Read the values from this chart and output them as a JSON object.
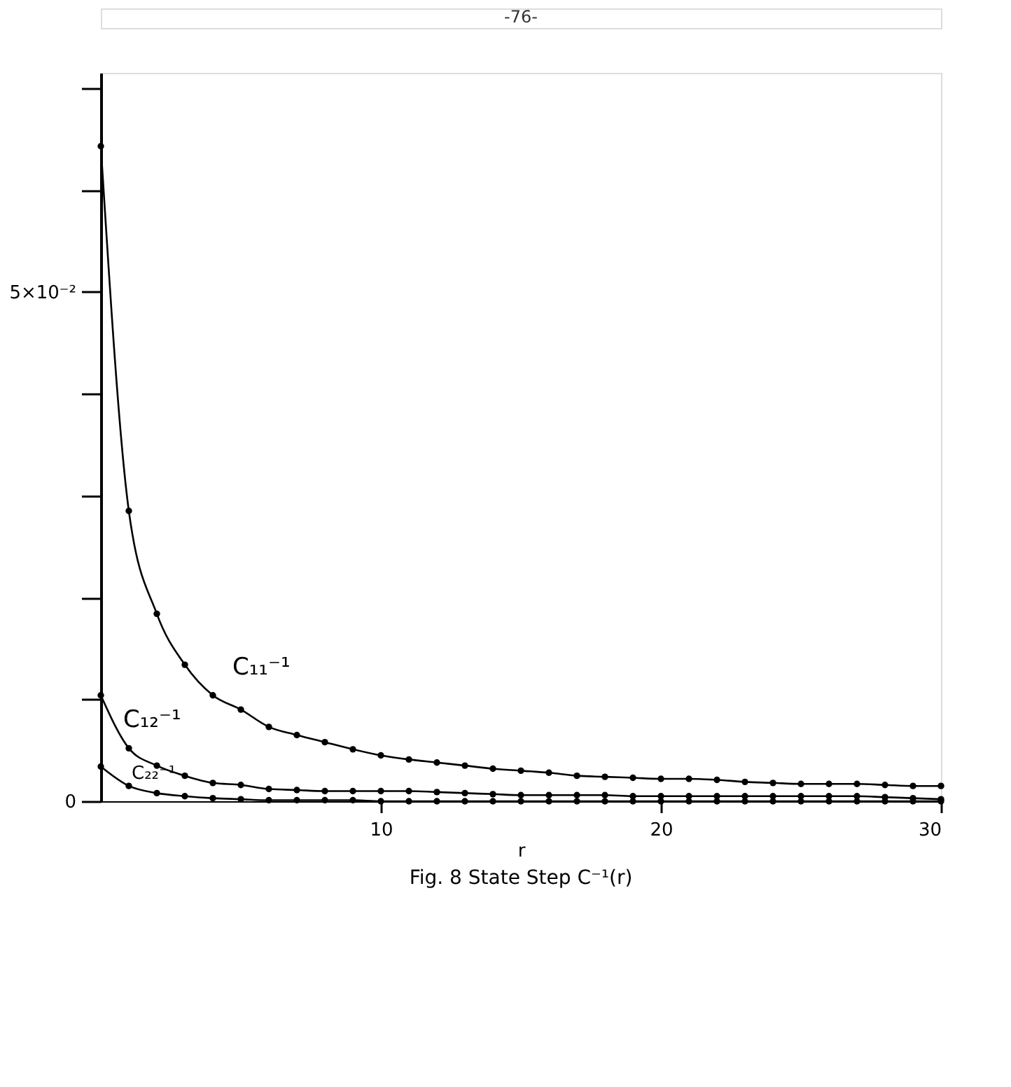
{
  "chart_data": {
    "type": "line",
    "title": "Fig. 8   State Step C⁻¹(r)",
    "xlabel": "r",
    "annotations": [
      "-76-"
    ],
    "x": [
      0,
      1,
      2,
      3,
      4,
      5,
      6,
      7,
      8,
      9,
      10,
      11,
      12,
      13,
      14,
      15,
      16,
      17,
      18,
      19,
      20,
      21,
      22,
      23,
      24,
      25,
      26,
      27,
      28,
      29,
      30
    ],
    "series": [
      {
        "name": "C₁₁⁻¹",
        "color": "#000000",
        "values": [
          0.0643,
          0.0285,
          0.0184,
          0.0134,
          0.0104,
          0.009,
          0.0073,
          0.0065,
          0.0058,
          0.0051,
          0.0045,
          0.0041,
          0.0038,
          0.0035,
          0.0032,
          0.003,
          0.0028,
          0.0025,
          0.0024,
          0.0023,
          0.0022,
          0.0022,
          0.0021,
          0.0019,
          0.0018,
          0.0017,
          0.0017,
          0.0017,
          0.0016,
          0.0015,
          0.0015
        ]
      },
      {
        "name": "C₁₂⁻¹",
        "color": "#000000",
        "values": [
          0.0104,
          0.0052,
          0.0035,
          0.0025,
          0.0018,
          0.0016,
          0.0012,
          0.0011,
          0.001,
          0.001,
          0.001,
          0.001,
          0.0009,
          0.0008,
          0.0007,
          0.0006,
          0.0006,
          0.0006,
          0.0006,
          0.0005,
          0.0005,
          0.0005,
          0.0005,
          0.0005,
          0.0005,
          0.0005,
          0.0005,
          0.0005,
          0.0004,
          0.0003,
          0.0002
        ]
      },
      {
        "name": "C₂₂⁻¹",
        "color": "#000000",
        "values": [
          0.0034,
          0.0015,
          0.0008,
          0.0005,
          0.0003,
          0.0002,
          0.0001,
          0.0001,
          0.0001,
          0.0001,
          0,
          0,
          0,
          0,
          0,
          0,
          0,
          0,
          0,
          0,
          0,
          0,
          0,
          0,
          0,
          0,
          0,
          0,
          0,
          0,
          0
        ]
      }
    ],
    "xlim": [
      0,
      30
    ],
    "xticks": [
      10,
      20,
      30
    ],
    "ylim": [
      0,
      0.0715
    ],
    "yticks": [
      {
        "value": 0,
        "label": "0"
      },
      {
        "value": 0.01,
        "label": null
      },
      {
        "value": 0.02,
        "label": null
      },
      {
        "value": 0.03,
        "label": null
      },
      {
        "value": 0.04,
        "label": null
      },
      {
        "value": 0.05,
        "label": "5×10⁻²"
      },
      {
        "value": 0.06,
        "label": null
      },
      {
        "value": 0.07,
        "label": null
      }
    ],
    "marker": "circle",
    "line_style": "solid",
    "grid": false
  }
}
